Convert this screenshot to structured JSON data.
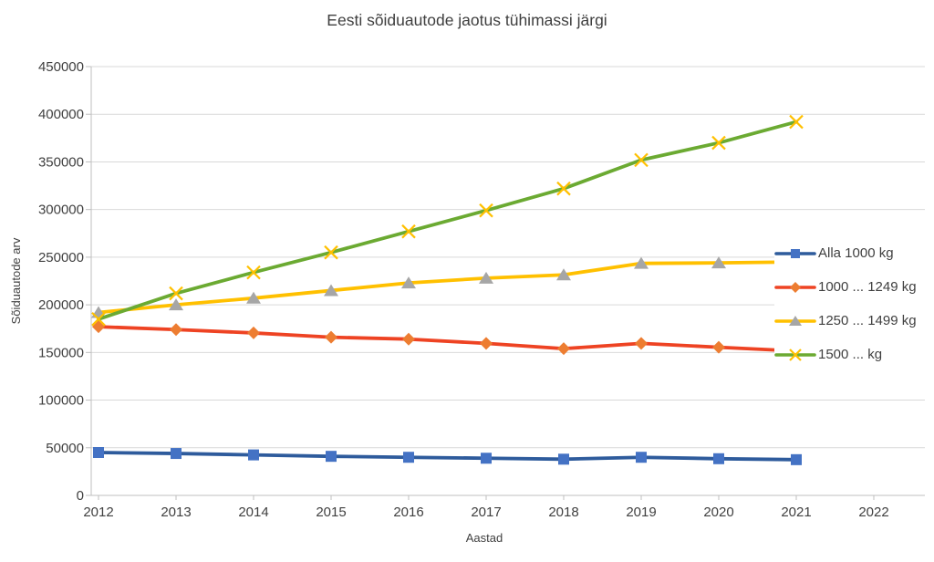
{
  "chart_data": {
    "type": "line",
    "title": "Eesti sõiduautode jaotus tühimassi järgi",
    "xlabel": "Aastad",
    "ylabel": "Sõiduautode arv",
    "x": [
      2012,
      2013,
      2014,
      2015,
      2016,
      2017,
      2018,
      2019,
      2020,
      2021
    ],
    "x_axis_ticks": [
      "2012",
      "2013",
      "2014",
      "2015",
      "2016",
      "2017",
      "2018",
      "2019",
      "2020",
      "2021",
      "2022"
    ],
    "y_ticks": [
      0,
      50000,
      100000,
      150000,
      200000,
      250000,
      300000,
      350000,
      400000,
      450000
    ],
    "ylim": [
      0,
      450000
    ],
    "grid": "horizontal",
    "legend_position": "right-inside",
    "colors": {
      "grid": "#d9d9d9",
      "axis": "#bfbfbf",
      "text": "#404040"
    },
    "series": [
      {
        "name": "Alla 1000 kg",
        "line_color": "#2e5b9c",
        "marker": "square",
        "marker_color": "#4472c4",
        "values": [
          45000,
          44000,
          42500,
          41000,
          40000,
          39000,
          38000,
          40000,
          38500,
          37500
        ]
      },
      {
        "name": "1000 ... 1249 kg",
        "line_color": "#ee4323",
        "marker": "diamond",
        "marker_color": "#ed7d31",
        "values": [
          177000,
          174000,
          170500,
          166000,
          164000,
          159500,
          154000,
          159500,
          155500,
          151500
        ]
      },
      {
        "name": "1250 ... 1499 kg",
        "line_color": "#ffc000",
        "marker": "triangle",
        "marker_color": "#a6a6a6",
        "values": [
          192000,
          200000,
          207000,
          215000,
          223000,
          228000,
          231500,
          243500,
          244000,
          245000
        ]
      },
      {
        "name": "1500 ... kg",
        "line_color": "#6baa32",
        "marker": "x",
        "marker_color": "#ffc000",
        "values": [
          185000,
          212000,
          234000,
          255000,
          277000,
          299000,
          322000,
          352000,
          370000,
          392000
        ]
      }
    ]
  }
}
